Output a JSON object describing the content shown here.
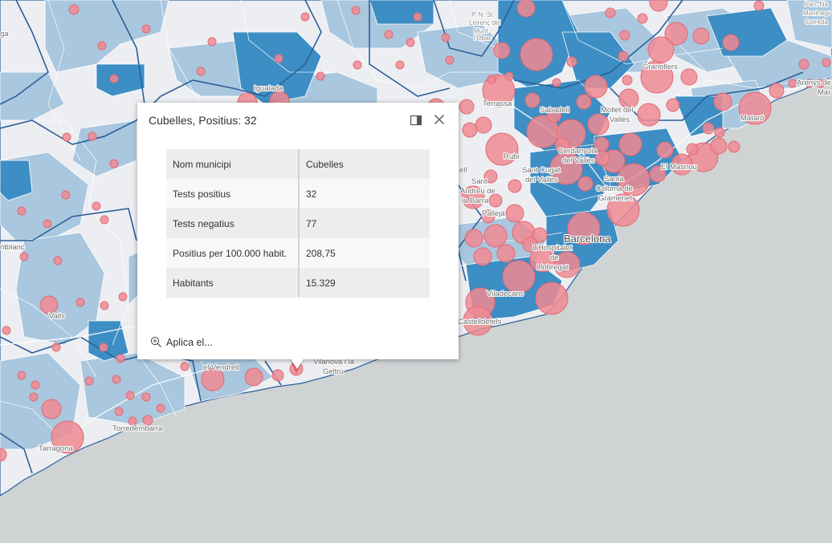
{
  "popup": {
    "title": "Cubelles, Positius: 32",
    "dock_icon": "dock-side-icon",
    "close_icon": "close-icon",
    "rows": [
      {
        "key": "Nom municipi",
        "value": "Cubelles"
      },
      {
        "key": "Tests positius",
        "value": "32"
      },
      {
        "key": "Tests negatius",
        "value": "77"
      },
      {
        "key": "Positius per 100.000 habit.",
        "value": "208,75"
      },
      {
        "key": "Habitants",
        "value": "15.329"
      }
    ],
    "zoom_action": "Aplica el...",
    "zoom_icon": "zoom-in-icon"
  },
  "map": {
    "colors": {
      "sea": "#cfd3d4",
      "land_light": "#eceef2",
      "land_mid": "#a9c7de",
      "land_dark": "#3d8ec4",
      "bubble_fill": "#f08a93",
      "bubble_stroke": "#e26a74",
      "border": "#2b5f9a"
    },
    "labels": {
      "barcelona": "Barcelona",
      "terrassa": "Terrassa",
      "sabadell": "Sabadell",
      "granollers": "Granollers",
      "mataro": "Mataró",
      "igualada": "Igualada",
      "rubi": "Rubí",
      "cerdanyola1": "Cerdanyola",
      "cerdanyola2": "del Vallès",
      "santcugat1": "Sant Cugat",
      "santcugat2": "del Vallès",
      "mollet1": "Mollet del",
      "mollet2": "Vallès",
      "elmasnou": "El Masnou",
      "santacoloma1": "Santa",
      "santacoloma2": "Coloma de",
      "santacoloma3": "Gramenet",
      "hospitalet1": "L'Hospitalet",
      "hospitalet2": "de",
      "hospitalet3": "Llobregat",
      "viladecans": "Viladecans",
      "castelldefels": "Castelldefels",
      "pallejar": "Pallejà",
      "santandreu1": "Sant",
      "santandreu2": "Andreu de",
      "santandreu3": "la Barra",
      "valls": "Valls",
      "tarragona": "Tarragona",
      "torredembarra": "Torredembarra",
      "elvendrell": "el Vendrell",
      "vilanova1": "Vilanova i la",
      "vilanova2": "Geltrú",
      "arenys1": "Arenys de",
      "arenys2": "Mar",
      "montblanc": "ntblanc",
      "pnst1": "P. N. St.",
      "pnst2": "Llorenç del",
      "pnst3": "Munt",
      "pnst4": "l'Obac",
      "correda1": "Parc Na",
      "correda2": "Montnegr",
      "correda3": "Correda",
      "ga": "ga",
      "ell": "ell"
    }
  }
}
